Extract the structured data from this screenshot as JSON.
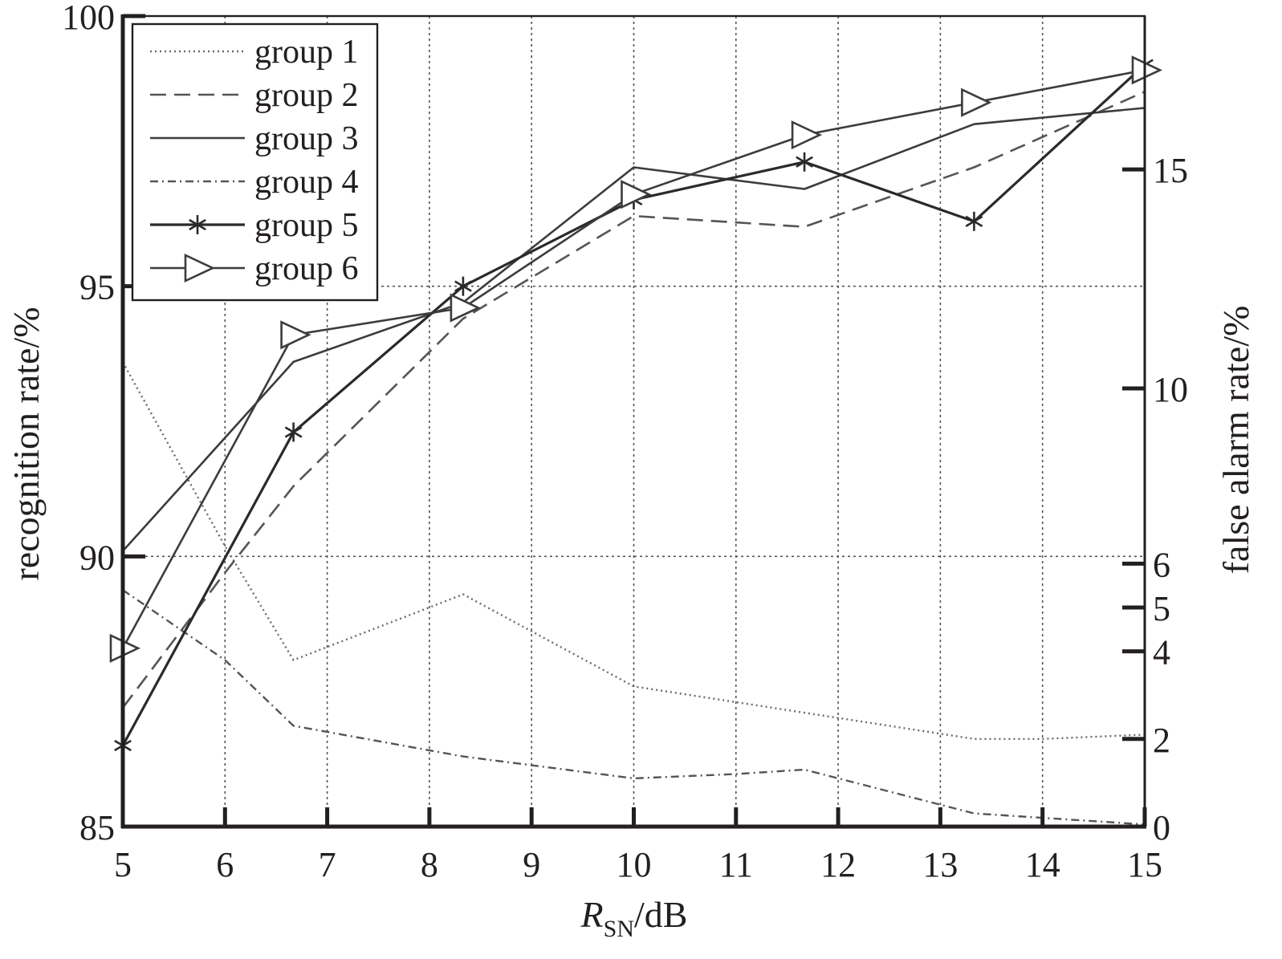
{
  "chart_data": {
    "type": "line",
    "xlabel": {
      "main": "R",
      "sub": "SN",
      "suffix": "/dB"
    },
    "ylabel_left": "recognition rate/%",
    "ylabel_right": "false alarm rate/%",
    "xlim": [
      5,
      15
    ],
    "ylim_left": [
      85,
      100
    ],
    "ylim_right": [
      0,
      18.5
    ],
    "x_ticks": [
      5,
      6,
      7,
      8,
      9,
      10,
      11,
      12,
      13,
      14,
      15
    ],
    "y_left_ticks": [
      85,
      90,
      95,
      100
    ],
    "y_right_ticks": [
      0,
      2,
      4,
      5,
      6,
      10,
      15
    ],
    "grid": true,
    "legend_position": "top-left",
    "x": [
      5,
      6.67,
      8.33,
      10,
      11.67,
      13.33,
      15
    ],
    "series": [
      {
        "name": "group 1",
        "axis": "right",
        "style": "dotted",
        "marker": "none",
        "x": [
          5,
          6,
          6.67,
          8.33,
          10,
          11.67,
          13.33,
          14,
          15
        ],
        "values": [
          10.6,
          6.4,
          3.8,
          5.3,
          3.2,
          2.6,
          2.0,
          2.0,
          2.1
        ]
      },
      {
        "name": "group 2",
        "axis": "left",
        "style": "dashed",
        "marker": "none",
        "x": [
          5,
          6,
          6.67,
          8.33,
          10,
          11.67,
          13.33,
          15
        ],
        "values": [
          87.2,
          89.7,
          91.3,
          94.4,
          96.3,
          96.1,
          97.2,
          98.6
        ]
      },
      {
        "name": "group 3",
        "axis": "left",
        "style": "solid",
        "marker": "none",
        "x": [
          5,
          6.67,
          8.33,
          10,
          11.67,
          13.33,
          15
        ],
        "values": [
          90.1,
          93.6,
          94.7,
          97.2,
          96.8,
          98.0,
          98.3
        ]
      },
      {
        "name": "group 4",
        "axis": "right",
        "style": "dashdot",
        "marker": "none",
        "x": [
          5,
          6,
          6.67,
          8.33,
          10,
          11,
          11.67,
          13.33,
          14,
          15
        ],
        "values": [
          5.4,
          3.8,
          2.3,
          1.6,
          1.1,
          1.2,
          1.3,
          0.3,
          0.2,
          0.05
        ]
      },
      {
        "name": "group 5",
        "axis": "left",
        "style": "solid-dark",
        "marker": "star",
        "x": [
          5,
          6.67,
          8.33,
          10,
          11.67,
          13.33,
          15
        ],
        "values": [
          86.5,
          92.3,
          95.0,
          96.6,
          97.3,
          96.2,
          99.1
        ]
      },
      {
        "name": "group 6",
        "axis": "left",
        "style": "solid",
        "marker": "triangle-right",
        "x": [
          5,
          6.67,
          8.33,
          10,
          11.67,
          13.33,
          15
        ],
        "values": [
          88.3,
          94.1,
          94.6,
          96.7,
          97.8,
          98.4,
          99.0
        ]
      }
    ]
  }
}
